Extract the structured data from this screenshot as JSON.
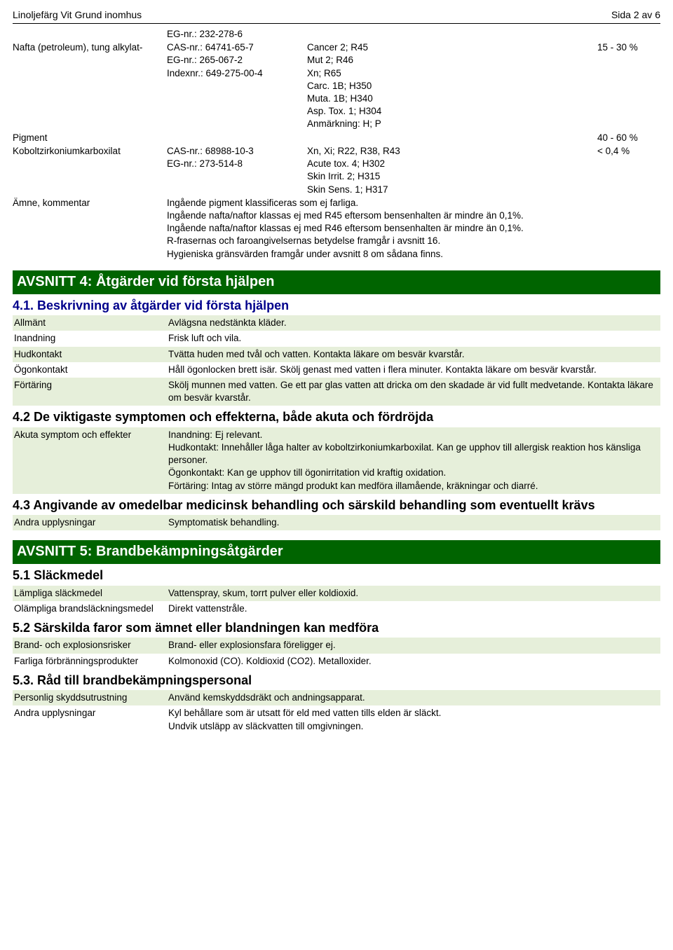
{
  "header": {
    "product_name": "Linoljefärg Vit Grund inomhus",
    "page_info": "Sida 2 av 6"
  },
  "ingredients": {
    "rows": [
      {
        "name": "",
        "ids": "EG-nr.: 232-278-6",
        "hazard": "",
        "pct": ""
      },
      {
        "name": "Nafta (petroleum), tung alkylat-",
        "ids": "CAS-nr.: 64741-65-7\nEG-nr.: 265-067-2\nIndexnr.: 649-275-00-4",
        "hazard": "Cancer 2; R45\nMut 2; R46\nXn; R65\nCarc. 1B; H350\nMuta. 1B; H340\nAsp. Tox. 1; H304\nAnmärkning: H; P",
        "pct": "15 - 30 %"
      },
      {
        "name": "Pigment",
        "ids": "",
        "hazard": "",
        "pct": "40 - 60 %"
      },
      {
        "name": "Koboltzirkoniumkarboxilat",
        "ids": "CAS-nr.: 68988-10-3\nEG-nr.: 273-514-8",
        "hazard": "Xn, Xi; R22, R38, R43\nAcute tox. 4; H302\nSkin Irrit. 2; H315\nSkin Sens. 1; H317",
        "pct": "< 0,4 %"
      }
    ],
    "motivation_label": "Ämne, kommentar",
    "motivation_text": "Ingående pigment klassificeras som ej farliga.\nIngående nafta/naftor klassas ej med R45 eftersom bensenhalten är mindre än 0,1%.\nIngående nafta/naftor klassas ej med R46 eftersom bensenhalten är mindre än 0,1%.\nR-frasernas och faroangivelsernas betydelse framgår i avsnitt 16.\nHygieniska gränsvärden framgår under avsnitt 8 om sådana finns."
  },
  "section4": {
    "title": "AVSNITT 4: Åtgärder vid första hjälpen",
    "s41": {
      "title": "4.1. Beskrivning av åtgärder vid första hjälpen",
      "rows": [
        {
          "label": "Allmänt",
          "value": "Avlägsna nedstänkta kläder."
        },
        {
          "label": "Inandning",
          "value": "Frisk luft och vila."
        },
        {
          "label": "Hudkontakt",
          "value": "Tvätta huden med tvål och vatten. Kontakta läkare om besvär kvarstår."
        },
        {
          "label": "Ögonkontakt",
          "value": "Håll ögonlocken brett isär. Skölj genast med vatten i flera minuter. Kontakta läkare om besvär kvarstår."
        },
        {
          "label": "Förtäring",
          "value": "Skölj munnen med vatten. Ge ett par glas vatten att dricka om den skadade är vid fullt medvetande. Kontakta läkare om besvär kvarstår."
        }
      ]
    },
    "s42": {
      "title": "4.2 De viktigaste symptomen och effekterna, både akuta och fördröjda",
      "rows": [
        {
          "label": "Akuta symptom och effekter",
          "value": "Inandning: Ej relevant.\nHudkontakt: Innehåller låga halter av koboltzirkoniumkarboxilat. Kan ge upphov till allergisk reaktion hos känsliga personer.\nÖgonkontakt: Kan ge upphov till ögonirritation vid kraftig oxidation.\nFörtäring: Intag av större mängd produkt kan medföra illamående, kräkningar och diarré."
        }
      ]
    },
    "s43": {
      "title": "4.3 Angivande av omedelbar medicinsk behandling och särskild behandling som eventuellt krävs",
      "rows": [
        {
          "label": "Andra upplysningar",
          "value": "Symptomatisk behandling."
        }
      ]
    }
  },
  "section5": {
    "title": "AVSNITT 5: Brandbekämpningsåtgärder",
    "s51": {
      "title": "5.1 Släckmedel",
      "rows": [
        {
          "label": "Lämpliga släckmedel",
          "value": "Vattenspray, skum, torrt pulver eller koldioxid."
        },
        {
          "label": "Olämpliga brandsläckningsmedel",
          "value": "Direkt vattenstråle."
        }
      ]
    },
    "s52": {
      "title": "5.2 Särskilda faror som ämnet eller blandningen kan medföra",
      "rows": [
        {
          "label": "Brand- och explosionsrisker",
          "value": "Brand- eller explosionsfara föreligger ej."
        },
        {
          "label": "Farliga förbränningsprodukter",
          "value": "Kolmonoxid (CO). Koldioxid (CO2). Metalloxider."
        }
      ]
    },
    "s53": {
      "title": "5.3. Råd till brandbekämpningspersonal",
      "rows": [
        {
          "label": "Personlig skyddsutrustning",
          "value": "Använd kemskyddsdräkt och andningsapparat."
        },
        {
          "label": "Andra upplysningar",
          "value": "Kyl behållare som är utsatt för eld med vatten tills elden är släckt.\nUndvik utsläpp av släckvatten till omgivningen."
        }
      ]
    }
  },
  "colors": {
    "section_bg": "#006400",
    "section_fg": "#ffffff",
    "sub_blue": "#00008B",
    "row_alt_bg": "#E6EFDA"
  }
}
